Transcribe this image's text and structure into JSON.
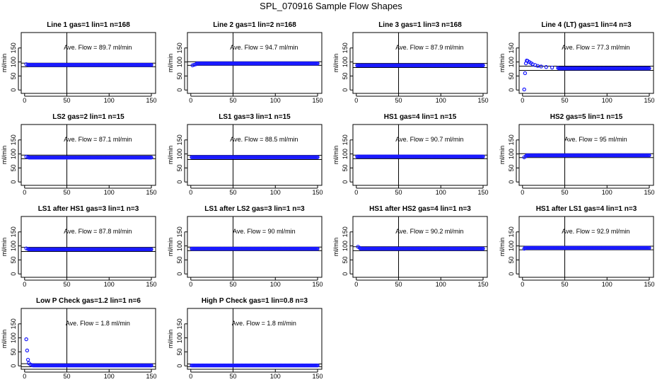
{
  "figure_title": "SPL_070916  Sample Flow Shapes",
  "chart_data": [
    {
      "type": "scatter",
      "title": "Line 1 gas=1 lin=1 n=168",
      "ylabel": "ml/min",
      "x_ticks": [
        "0",
        "50",
        "100",
        "150"
      ],
      "y_ticks": [
        "0",
        "50",
        "100",
        "150"
      ],
      "xlim": [
        -4,
        155
      ],
      "ylim": [
        -12,
        205
      ],
      "annotation": "Ave. Flow =  89.7  ml/min",
      "ave_flow": 89.7,
      "band": [
        83,
        96
      ],
      "vline_x": 50,
      "series": {
        "kind": "flat",
        "level": 89.7,
        "start": [
          [
            2,
            92
          ],
          [
            4,
            90
          ]
        ]
      }
    },
    {
      "type": "scatter",
      "title": "Line 2 gas=1 lin=2 n=168",
      "ylabel": "ml/min",
      "x_ticks": [
        "0",
        "50",
        "100",
        "150"
      ],
      "y_ticks": [
        "0",
        "50",
        "100",
        "150"
      ],
      "xlim": [
        -4,
        155
      ],
      "ylim": [
        -12,
        205
      ],
      "annotation": "Ave. Flow =  94.7  ml/min",
      "ave_flow": 94.7,
      "band": [
        88,
        101
      ],
      "vline_x": 50,
      "series": {
        "kind": "flat",
        "level": 94.7,
        "start": [
          [
            2,
            88
          ],
          [
            4,
            90
          ],
          [
            6,
            92
          ]
        ]
      }
    },
    {
      "type": "scatter",
      "title": "Line 3 gas=1 lin=3 n=168",
      "ylabel": "ml/min",
      "x_ticks": [
        "0",
        "50",
        "100",
        "150"
      ],
      "y_ticks": [
        "0",
        "50",
        "100",
        "150"
      ],
      "xlim": [
        -4,
        155
      ],
      "ylim": [
        -12,
        205
      ],
      "annotation": "Ave. Flow =  87.9  ml/min",
      "ave_flow": 87.9,
      "band": [
        80,
        95
      ],
      "vline_x": 50,
      "series": {
        "kind": "flat",
        "level": 87.9,
        "start": []
      }
    },
    {
      "type": "scatter",
      "title": "Line 4 (LT) gas=1 lin=4 n=3",
      "ylabel": "ml/min",
      "x_ticks": [
        "0",
        "50",
        "100",
        "150"
      ],
      "y_ticks": [
        "0",
        "50",
        "100",
        "150"
      ],
      "xlim": [
        -4,
        155
      ],
      "ylim": [
        -12,
        205
      ],
      "annotation": "Ave. Flow =  77.3  ml/min",
      "ave_flow": 77.3,
      "band": [
        70,
        85
      ],
      "vline_x": 50,
      "series": {
        "kind": "flat",
        "level": 77.3,
        "start": [
          [
            2,
            2
          ],
          [
            3,
            60
          ],
          [
            4,
            95
          ],
          [
            5,
            105
          ],
          [
            6,
            104
          ],
          [
            8,
            100
          ],
          [
            10,
            96
          ],
          [
            12,
            92
          ],
          [
            15,
            89
          ],
          [
            18,
            86
          ],
          [
            22,
            84
          ],
          [
            28,
            82
          ],
          [
            35,
            80
          ],
          [
            42,
            79
          ]
        ]
      }
    },
    {
      "type": "scatter",
      "title": "LS2 gas=2 lin=1 n=15",
      "ylabel": "ml/min",
      "x_ticks": [
        "0",
        "50",
        "100",
        "150"
      ],
      "y_ticks": [
        "0",
        "50",
        "100",
        "150"
      ],
      "xlim": [
        -4,
        155
      ],
      "ylim": [
        -12,
        205
      ],
      "annotation": "Ave. Flow =  87.1  ml/min",
      "ave_flow": 87.1,
      "band": [
        83,
        96
      ],
      "vline_x": 50,
      "series": {
        "kind": "flat",
        "level": 87.1,
        "start": [
          [
            2,
            90
          ],
          [
            4,
            89
          ]
        ]
      }
    },
    {
      "type": "scatter",
      "title": "LS1 gas=3 lin=1 n=15",
      "ylabel": "ml/min",
      "x_ticks": [
        "0",
        "50",
        "100",
        "150"
      ],
      "y_ticks": [
        "0",
        "50",
        "100",
        "150"
      ],
      "xlim": [
        -4,
        155
      ],
      "ylim": [
        -12,
        205
      ],
      "annotation": "Ave. Flow =  88.5  ml/min",
      "ave_flow": 88.5,
      "band": [
        80,
        95
      ],
      "vline_x": 50,
      "series": {
        "kind": "flat",
        "level": 88.5,
        "start": []
      }
    },
    {
      "type": "scatter",
      "title": "HS1 gas=4 lin=1 n=15",
      "ylabel": "ml/min",
      "x_ticks": [
        "0",
        "50",
        "100",
        "150"
      ],
      "y_ticks": [
        "0",
        "50",
        "100",
        "150"
      ],
      "xlim": [
        -4,
        155
      ],
      "ylim": [
        -12,
        205
      ],
      "annotation": "Ave. Flow =  90.7  ml/min",
      "ave_flow": 90.7,
      "band": [
        83,
        96
      ],
      "vline_x": 50,
      "series": {
        "kind": "flat",
        "level": 90.7,
        "start": []
      }
    },
    {
      "type": "scatter",
      "title": "HS2 gas=5 lin=1 n=15",
      "ylabel": "ml/min",
      "x_ticks": [
        "0",
        "50",
        "100",
        "150"
      ],
      "y_ticks": [
        "0",
        "50",
        "100",
        "150"
      ],
      "xlim": [
        -4,
        155
      ],
      "ylim": [
        -12,
        205
      ],
      "annotation": "Ave. Flow =  95  ml/min",
      "ave_flow": 95,
      "band": [
        87,
        101
      ],
      "vline_x": 50,
      "series": {
        "kind": "flat",
        "level": 95,
        "start": [
          [
            2,
            88
          ],
          [
            4,
            92
          ]
        ]
      }
    },
    {
      "type": "scatter",
      "title": "LS1 after HS1 gas=3 lin=1 n=3",
      "ylabel": "ml/min",
      "x_ticks": [
        "0",
        "50",
        "100",
        "150"
      ],
      "y_ticks": [
        "0",
        "50",
        "100",
        "150"
      ],
      "xlim": [
        -4,
        155
      ],
      "ylim": [
        -12,
        205
      ],
      "annotation": "Ave. Flow =  87.8  ml/min",
      "ave_flow": 87.8,
      "band": [
        80,
        95
      ],
      "vline_x": 50,
      "series": {
        "kind": "flat",
        "level": 87.8,
        "start": [
          [
            2,
            91
          ],
          [
            4,
            89
          ]
        ]
      }
    },
    {
      "type": "scatter",
      "title": "LS1 after LS2 gas=3 lin=1 n=3",
      "ylabel": "ml/min",
      "x_ticks": [
        "0",
        "50",
        "100",
        "150"
      ],
      "y_ticks": [
        "0",
        "50",
        "100",
        "150"
      ],
      "xlim": [
        -4,
        155
      ],
      "ylim": [
        -12,
        205
      ],
      "annotation": "Ave. Flow =  90  ml/min",
      "ave_flow": 90,
      "band": [
        83,
        96
      ],
      "vline_x": 50,
      "series": {
        "kind": "flat",
        "level": 90,
        "start": []
      }
    },
    {
      "type": "scatter",
      "title": "HS1 after HS2 gas=4 lin=1 n=3",
      "ylabel": "ml/min",
      "x_ticks": [
        "0",
        "50",
        "100",
        "150"
      ],
      "y_ticks": [
        "0",
        "50",
        "100",
        "150"
      ],
      "xlim": [
        -4,
        155
      ],
      "ylim": [
        -12,
        205
      ],
      "annotation": "Ave. Flow =  90.2  ml/min",
      "ave_flow": 90.2,
      "band": [
        83,
        97
      ],
      "vline_x": 50,
      "series": {
        "kind": "flat",
        "level": 90.2,
        "start": [
          [
            2,
            97
          ],
          [
            4,
            93
          ]
        ]
      }
    },
    {
      "type": "scatter",
      "title": "HS1 after LS1 gas=4 lin=1 n=3",
      "ylabel": "ml/min",
      "x_ticks": [
        "0",
        "50",
        "100",
        "150"
      ],
      "y_ticks": [
        "0",
        "50",
        "100",
        "150"
      ],
      "xlim": [
        -4,
        155
      ],
      "ylim": [
        -12,
        205
      ],
      "annotation": "Ave. Flow =  92.9  ml/min",
      "ave_flow": 92.9,
      "band": [
        86,
        99
      ],
      "vline_x": 50,
      "series": {
        "kind": "flat",
        "level": 92.9,
        "start": [
          [
            2,
            90
          ]
        ]
      }
    },
    {
      "type": "scatter",
      "title": "Low P Check gas=1.2 lin=1 n=6",
      "ylabel": "ml/min",
      "x_ticks": [
        "0",
        "50",
        "100",
        "150"
      ],
      "y_ticks": [
        "0",
        "50",
        "100",
        "150"
      ],
      "xlim": [
        -4,
        155
      ],
      "ylim": [
        -12,
        205
      ],
      "annotation": "Ave. Flow =  1.8  ml/min",
      "ave_flow": 1.8,
      "band": [
        -3,
        8
      ],
      "vline_x": 50,
      "series": {
        "kind": "flat",
        "level": 1.8,
        "start": [
          [
            2,
            95
          ],
          [
            3,
            55
          ],
          [
            4,
            22
          ],
          [
            5,
            10
          ],
          [
            7,
            5
          ],
          [
            9,
            3
          ]
        ]
      }
    },
    {
      "type": "scatter",
      "title": "High P Check gas=1 lin=0.8 n=3",
      "ylabel": "ml/min",
      "x_ticks": [
        "0",
        "50",
        "100",
        "150"
      ],
      "y_ticks": [
        "0",
        "50",
        "100",
        "150"
      ],
      "xlim": [
        -4,
        155
      ],
      "ylim": [
        -12,
        205
      ],
      "annotation": "Ave. Flow =  1.8  ml/min",
      "ave_flow": 1.8,
      "band": [
        -3,
        7
      ],
      "vline_x": 50,
      "series": {
        "kind": "flat",
        "level": 1.8,
        "start": []
      }
    }
  ]
}
